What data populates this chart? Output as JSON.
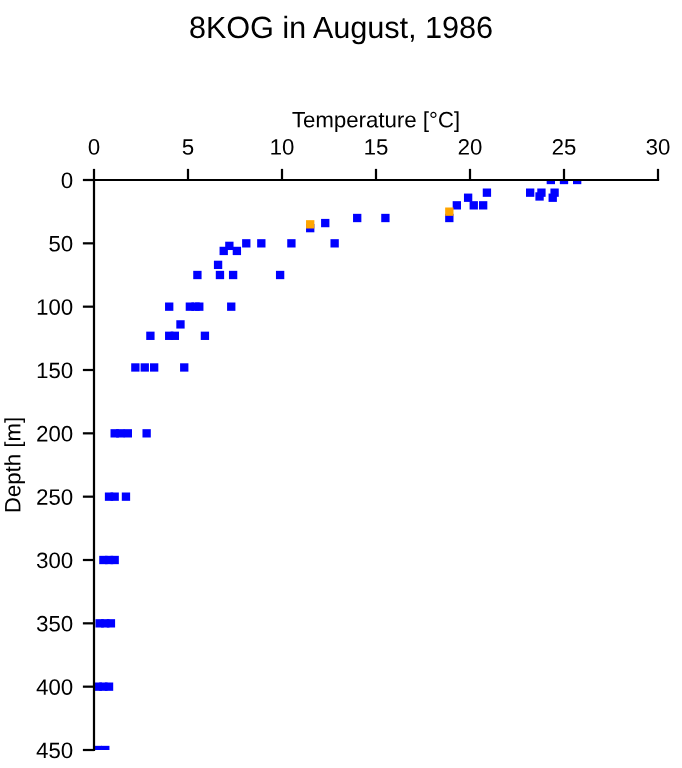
{
  "chart_data": {
    "type": "scatter",
    "title": "8KOG in August, 1986",
    "xlabel": "Temperature [°C]",
    "ylabel": "Depth [m]",
    "xlim": [
      0,
      30
    ],
    "xticks": [
      0,
      5,
      10,
      15,
      20,
      25,
      30
    ],
    "ylim": [
      450,
      0
    ],
    "yticks": [
      0,
      50,
      100,
      150,
      200,
      250,
      300,
      350,
      400,
      450
    ],
    "marker": "square",
    "grid": false,
    "legend": false,
    "series": [
      {
        "color": "#0000ff",
        "x": [
          24.3,
          25.0,
          25.7,
          23.2,
          23.8,
          23.7,
          24.5,
          24.4,
          20.9,
          19.9,
          19.3,
          20.2,
          20.7,
          18.9,
          15.5,
          14.0,
          12.3,
          11.5,
          10.5,
          12.8,
          8.9,
          8.1,
          7.2,
          6.9,
          7.6,
          6.6,
          5.5,
          6.7,
          7.4,
          9.9,
          4.0,
          5.1,
          5.4,
          5.6,
          7.3,
          4.6,
          3.0,
          4.0,
          4.3,
          5.9,
          2.2,
          2.7,
          3.2,
          4.8,
          1.1,
          1.4,
          1.8,
          2.8,
          0.8,
          1.1,
          1.7,
          0.5,
          0.8,
          1.1,
          0.3,
          0.6,
          0.9,
          0.2,
          0.5,
          0.8,
          0.2,
          0.6
        ],
        "values": [
          0,
          0,
          0,
          10,
          10,
          13,
          10,
          14,
          10,
          14,
          20,
          20,
          20,
          30,
          30,
          30,
          34,
          38,
          50,
          50,
          50,
          50,
          52,
          56,
          56,
          67,
          75,
          75,
          75,
          75,
          100,
          100,
          100,
          100,
          100,
          114,
          123,
          123,
          123,
          123,
          148,
          148,
          148,
          148,
          200,
          200,
          200,
          200,
          250,
          250,
          250,
          300,
          300,
          300,
          350,
          350,
          350,
          400,
          400,
          400,
          450,
          450
        ]
      },
      {
        "color": "#ffa500",
        "x": [
          18.9,
          11.5
        ],
        "values": [
          25,
          35
        ]
      }
    ]
  }
}
